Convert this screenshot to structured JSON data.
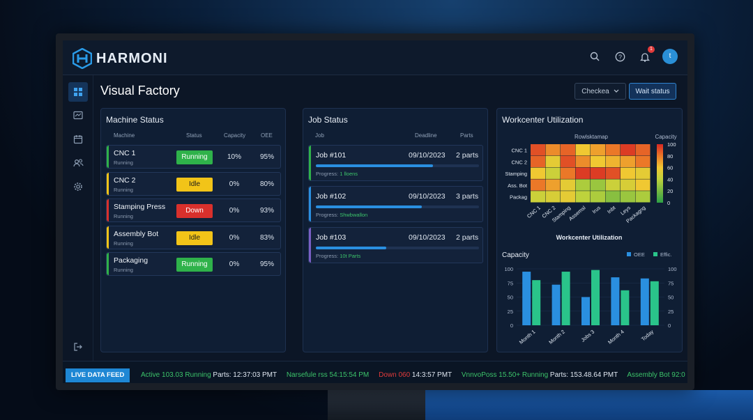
{
  "app": {
    "name": "HARMONI"
  },
  "topbar": {
    "icons": [
      "search-icon",
      "help-icon",
      "bell-icon",
      "avatar"
    ],
    "notification_count": "1",
    "avatar_initial": "t"
  },
  "sidebar": {
    "items": [
      "dashboard-icon",
      "monitor-icon",
      "calendar-icon",
      "users-icon",
      "gear-icon"
    ],
    "bottom": "logout-icon"
  },
  "page": {
    "title": "Visual Factory",
    "checked_label": "Checkea",
    "wait_label": "Wait status"
  },
  "colors": {
    "green": "#2fb24a",
    "yellow": "#f2c418",
    "red": "#d9302c",
    "blue": "#2a8fe0",
    "teal": "#2ac48a"
  },
  "machine_status": {
    "title": "Machine Status",
    "headers": [
      "Machine",
      "Status",
      "Capacity",
      "OEE"
    ],
    "rows": [
      {
        "name": "CNC 1",
        "sub": "Running",
        "status": "Running",
        "capacity": "10%",
        "oee": "95%",
        "color": "#2fb24a"
      },
      {
        "name": "CNC 2",
        "sub": "Running",
        "status": "Idle",
        "capacity": "0%",
        "oee": "80%",
        "color": "#f2c418"
      },
      {
        "name": "Stamping Press",
        "sub": "Running",
        "status": "Down",
        "capacity": "0%",
        "oee": "93%",
        "color": "#d9302c"
      },
      {
        "name": "Assembly Bot",
        "sub": "Running",
        "status": "Idle",
        "capacity": "0%",
        "oee": "83%",
        "color": "#f2c418"
      },
      {
        "name": "Packaging",
        "sub": "Running",
        "status": "Running",
        "capacity": "0%",
        "oee": "95%",
        "color": "#2fb24a"
      }
    ]
  },
  "job_status": {
    "title": "Job Status",
    "headers": [
      "Job",
      "Deadline",
      "Parts"
    ],
    "rows": [
      {
        "name": "Job #101",
        "deadline": "09/10/2023",
        "parts": "2 parts",
        "progress_label": "Progress:",
        "progress_value": "1 lloens",
        "progress": 0.72,
        "color": "#2fb24a"
      },
      {
        "name": "Job #102",
        "deadline": "09/10/2023",
        "parts": "3 parts",
        "progress_label": "Progress:",
        "progress_value": "Shwbwallon",
        "progress": 0.65,
        "color": "#2a8fe0"
      },
      {
        "name": "Job #103",
        "deadline": "09/10/2023",
        "parts": "2 parts",
        "progress_label": "Progress:",
        "progress_value": "10t Parts",
        "progress": 0.43,
        "color": "#7a5fc4"
      }
    ]
  },
  "workcenter": {
    "title": "Workcenter Utilization",
    "heatmap_title": "Rowlsktamap",
    "capacity_label": "Capacity",
    "chart_footer": "Workcenter Utilization"
  },
  "chart_data": [
    {
      "type": "heatmap",
      "title": "Rowlsktamap",
      "rows": [
        "CNC 1",
        "CNC 2",
        "Stamping",
        "Ass. Bot",
        "Packag"
      ],
      "columns": [
        "CNC 1",
        "CNC 2",
        "Stamping",
        "Assemsl",
        "Irus",
        "Inbt",
        "Leys",
        "Packagng"
      ],
      "values": [
        [
          90,
          75,
          85,
          60,
          70,
          80,
          95,
          85
        ],
        [
          85,
          55,
          90,
          75,
          60,
          65,
          70,
          80
        ],
        [
          60,
          45,
          80,
          95,
          95,
          90,
          60,
          55
        ],
        [
          80,
          70,
          55,
          35,
          30,
          45,
          50,
          60
        ],
        [
          45,
          50,
          55,
          40,
          35,
          25,
          30,
          35
        ]
      ],
      "scale_label": "Capacity",
      "scale_range": [
        0,
        100
      ],
      "scale_ticks": [
        "100",
        "80",
        "60",
        "40",
        "20",
        "0"
      ],
      "footer": "Workcenter Utilization"
    },
    {
      "type": "bar",
      "title": "Capacity",
      "categories": [
        "Month 1",
        "Month 2",
        "Jobs 3",
        "Month 4",
        "Today"
      ],
      "series": [
        {
          "name": "OEE",
          "values": [
            95,
            72,
            50,
            85,
            83
          ],
          "color": "#2a8fe0"
        },
        {
          "name": "Effic.",
          "values": [
            80,
            95,
            98,
            62,
            78
          ],
          "color": "#2ac48a"
        }
      ],
      "ylim": [
        0,
        100
      ],
      "yticks": [
        "100",
        "75",
        "50",
        "25",
        "0"
      ],
      "legend": "top-right"
    }
  ],
  "ticker": {
    "label": "LIVE DATA FEED",
    "segments": [
      {
        "text": "Active 103.03 Running",
        "cls": "g"
      },
      {
        "text": " Parts: 12:37:03 PMT",
        "cls": ""
      },
      {
        "text": "     Narsefule rss 54:15:54 PM",
        "cls": "g"
      },
      {
        "text": "     Down 060",
        "cls": "r"
      },
      {
        "text": " 14:3:57 PMT",
        "cls": ""
      },
      {
        "text": "     VnnvoPoss 15.50+ Running",
        "cls": "g"
      },
      {
        "text": " Parts: 153.48.64 PMT",
        "cls": ""
      },
      {
        "text": "     Assembly Bot 92:0",
        "cls": "g"
      }
    ]
  }
}
